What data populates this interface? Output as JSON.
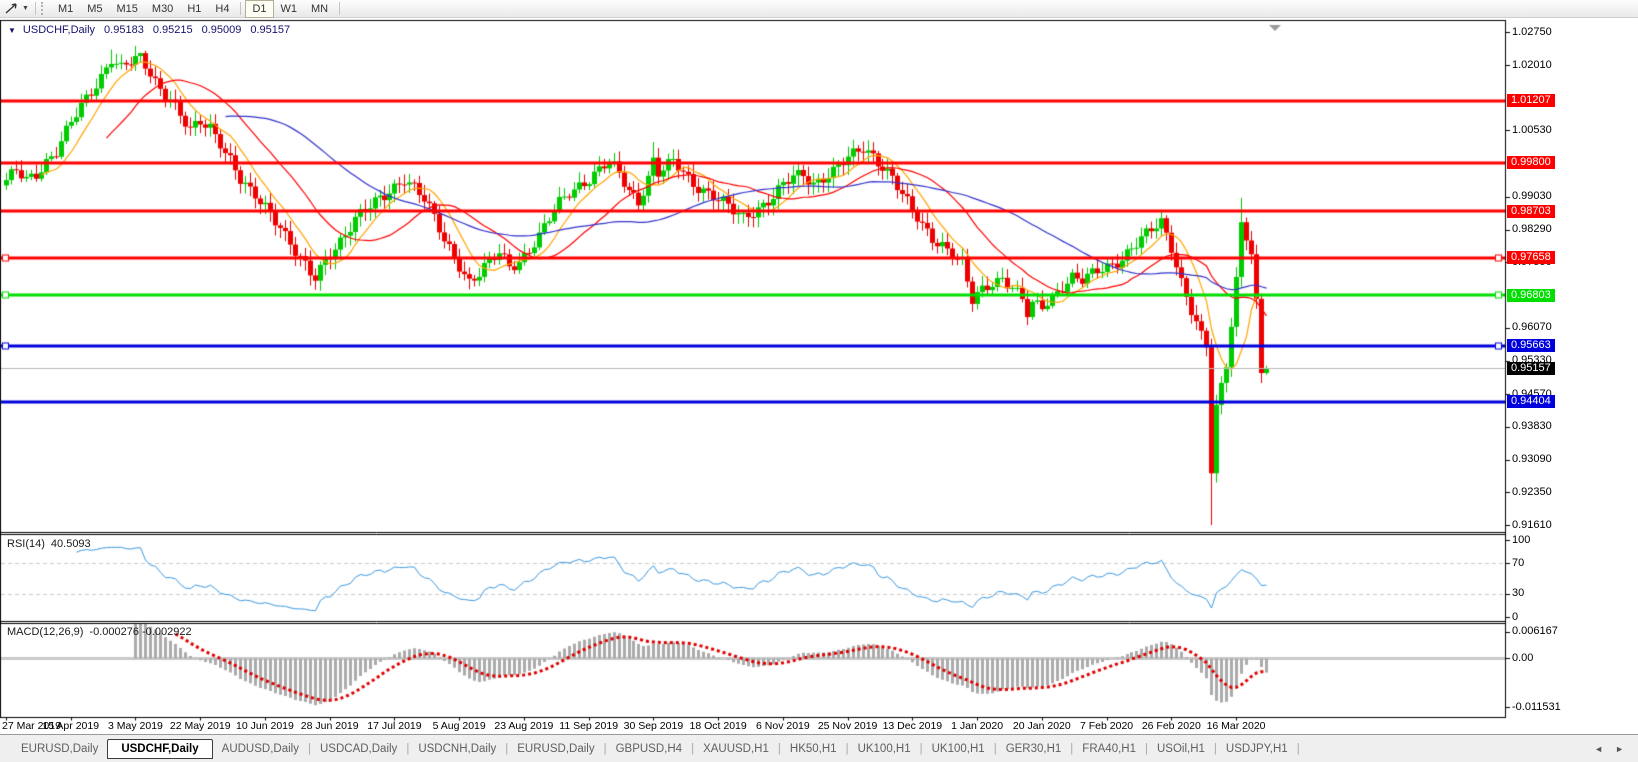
{
  "toolbar": {
    "chart_tool_icon": "cursor-arrow",
    "timeframes": [
      "M1",
      "M5",
      "M15",
      "M30",
      "H1",
      "H4",
      "D1",
      "W1",
      "MN"
    ],
    "active_timeframe": "D1"
  },
  "chart": {
    "symbol_title": "USDCHF,Daily",
    "ohlc": {
      "open": "0.95183",
      "high": "0.95215",
      "low": "0.95009",
      "close": "0.95157"
    },
    "current_price": 0.95157,
    "current_price_label_color": "#000000",
    "current_price_line_color": "#b8b8b8",
    "price_axis_ticks": [
      1.0275,
      1.0201,
      1.0053,
      0.9903,
      0.9829,
      0.9755,
      0.9607,
      0.9533,
      0.9457,
      0.9383,
      0.9309,
      0.9235,
      0.9161
    ],
    "lines": [
      {
        "value": 1.01207,
        "color": "#FF0000",
        "width": 3,
        "handles": false
      },
      {
        "value": 0.998,
        "color": "#FF0000",
        "width": 3,
        "handles": false
      },
      {
        "value": 0.98703,
        "color": "#FF0000",
        "width": 3,
        "handles": false
      },
      {
        "value": 0.97658,
        "color": "#FF0000",
        "width": 3,
        "handles": true
      },
      {
        "value": 0.96803,
        "color": "#00DE00",
        "width": 3,
        "handles": true
      },
      {
        "value": 0.95663,
        "color": "#0000DC",
        "width": 3,
        "handles": true
      },
      {
        "value": 0.94404,
        "color": "#0000DC",
        "width": 3,
        "handles": false
      }
    ]
  },
  "rsi": {
    "label": "RSI(14)",
    "value_text": "40.5093",
    "axis_ticks": [
      100,
      70,
      30,
      0
    ],
    "upper_level": 70,
    "lower_level": 30,
    "line_color": "#3C99E0",
    "level_color": "#cdcdcd"
  },
  "macd": {
    "label": "MACD(12,26,9)",
    "values_text": "-0.000276 -0.002922",
    "axis_ticks": [
      {
        "text": "0.006167",
        "value": 0.006167
      },
      {
        "text": "0.00",
        "value": 0
      },
      {
        "text": "-0.011531",
        "value": -0.011531
      }
    ],
    "histogram_color": "#ababab",
    "signal_color": "#E00000",
    "zero_color": "#c9c9c9"
  },
  "date_axis": {
    "labels": [
      "27 Mar 2019",
      "15 Apr 2019",
      "3 May 2019",
      "22 May 2019",
      "10 Jun 2019",
      "28 Jun 2019",
      "17 Jul 2019",
      "5 Aug 2019",
      "23 Aug 2019",
      "11 Sep 2019",
      "30 Sep 2019",
      "18 Oct 2019",
      "6 Nov 2019",
      "25 Nov 2019",
      "13 Dec 2019",
      "1 Jan 2020",
      "20 Jan 2020",
      "7 Feb 2020",
      "26 Feb 2020",
      "16 Mar 2020"
    ],
    "bars_per_label": 13
  },
  "tabs": [
    {
      "label": "EURUSD,Daily",
      "active": false
    },
    {
      "label": "USDCHF,Daily",
      "active": true
    },
    {
      "label": "AUDUSD,Daily",
      "active": false
    },
    {
      "label": "USDCAD,Daily",
      "active": false
    },
    {
      "label": "USDCNH,Daily",
      "active": false
    },
    {
      "label": "EURUSD,Daily",
      "active": false
    },
    {
      "label": "GBPUSD,H4",
      "active": false
    },
    {
      "label": "XAUUSD,H1",
      "active": false
    },
    {
      "label": "HK50,H1",
      "active": false
    },
    {
      "label": "UK100,H1",
      "active": false
    },
    {
      "label": "UK100,H1",
      "active": false
    },
    {
      "label": "GER30,H1",
      "active": false
    },
    {
      "label": "FRA40,H1",
      "active": false
    },
    {
      "label": "USOil,H1",
      "active": false
    },
    {
      "label": "USDJPY,H1",
      "active": false
    }
  ],
  "tab_scroll": {
    "left": "◄",
    "right": "►"
  },
  "chart_data": {
    "type": "candlestick",
    "symbol": "USDCHF",
    "timeframe": "Daily",
    "bars_total": 254,
    "up_color": "#00CC00",
    "down_color": "#EE0000",
    "y_range": {
      "top": 1.03005,
      "bottom": 0.91455
    },
    "close_anchors": [
      [
        0,
        0.9935
      ],
      [
        2,
        0.996
      ],
      [
        4,
        0.9942
      ],
      [
        6,
        0.9958
      ],
      [
        8,
        0.9985
      ],
      [
        10,
        1.0005
      ],
      [
        13,
        1.0068
      ],
      [
        16,
        1.0125
      ],
      [
        19,
        1.0178
      ],
      [
        21,
        1.0218
      ],
      [
        23,
        1.0192
      ],
      [
        25,
        1.0205
      ],
      [
        27,
        1.0215
      ],
      [
        29,
        1.0185
      ],
      [
        31,
        1.015
      ],
      [
        33,
        1.0128
      ],
      [
        35,
        1.0085
      ],
      [
        37,
        1.0048
      ],
      [
        39,
        1.007
      ],
      [
        41,
        1.0062
      ],
      [
        43,
        1.003
      ],
      [
        45,
        0.999
      ],
      [
        47,
        0.994
      ],
      [
        49,
        0.991
      ],
      [
        52,
        0.988
      ],
      [
        55,
        0.9842
      ],
      [
        57,
        0.98
      ],
      [
        59,
        0.9762
      ],
      [
        61,
        0.9725
      ],
      [
        62,
        0.9715
      ],
      [
        64,
        0.9758
      ],
      [
        66,
        0.9792
      ],
      [
        68,
        0.9822
      ],
      [
        70,
        0.9855
      ],
      [
        73,
        0.9878
      ],
      [
        76,
        0.9905
      ],
      [
        78,
        0.9928
      ],
      [
        80,
        0.9948
      ],
      [
        82,
        0.9925
      ],
      [
        84,
        0.9895
      ],
      [
        86,
        0.9852
      ],
      [
        88,
        0.9805
      ],
      [
        90,
        0.9772
      ],
      [
        92,
        0.9732
      ],
      [
        93,
        0.9712
      ],
      [
        95,
        0.9728
      ],
      [
        97,
        0.9752
      ],
      [
        99,
        0.9775
      ],
      [
        101,
        0.9748
      ],
      [
        103,
        0.976
      ],
      [
        105,
        0.9785
      ],
      [
        107,
        0.9812
      ],
      [
        109,
        0.985
      ],
      [
        111,
        0.9888
      ],
      [
        113,
        0.9915
      ],
      [
        115,
        0.9932
      ],
      [
        117,
        0.9945
      ],
      [
        119,
        0.9962
      ],
      [
        121,
        0.998
      ],
      [
        123,
        0.9952
      ],
      [
        125,
        0.992
      ],
      [
        127,
        0.9895
      ],
      [
        129,
        0.9948
      ],
      [
        130,
        0.9985
      ],
      [
        131,
        0.9955
      ],
      [
        132,
        0.9962
      ],
      [
        134,
        0.998
      ],
      [
        136,
        0.9958
      ],
      [
        138,
        0.9935
      ],
      [
        140,
        0.9922
      ],
      [
        142,
        0.9905
      ],
      [
        144,
        0.9888
      ],
      [
        146,
        0.9868
      ],
      [
        148,
        0.9855
      ],
      [
        150,
        0.9872
      ],
      [
        152,
        0.9888
      ],
      [
        154,
        0.9905
      ],
      [
        156,
        0.9928
      ],
      [
        158,
        0.9945
      ],
      [
        160,
        0.9952
      ],
      [
        162,
        0.9935
      ],
      [
        164,
        0.995
      ],
      [
        166,
        0.9962
      ],
      [
        168,
        0.998
      ],
      [
        170,
        0.9995
      ],
      [
        172,
        1.0012
      ],
      [
        174,
        0.9998
      ],
      [
        176,
        0.9975
      ],
      [
        178,
        0.9948
      ],
      [
        180,
        0.9905
      ],
      [
        182,
        0.9868
      ],
      [
        184,
        0.9838
      ],
      [
        186,
        0.9812
      ],
      [
        188,
        0.9798
      ],
      [
        190,
        0.9775
      ],
      [
        192,
        0.9748
      ],
      [
        194,
        0.9665
      ],
      [
        196,
        0.9692
      ],
      [
        198,
        0.9712
      ],
      [
        200,
        0.9722
      ],
      [
        202,
        0.97
      ],
      [
        204,
        0.9668
      ],
      [
        205,
        0.9635
      ],
      [
        206,
        0.9655
      ],
      [
        208,
        0.9655
      ],
      [
        210,
        0.9678
      ],
      [
        212,
        0.9705
      ],
      [
        214,
        0.9722
      ],
      [
        216,
        0.9712
      ],
      [
        218,
        0.9725
      ],
      [
        220,
        0.974
      ],
      [
        222,
        0.9752
      ],
      [
        224,
        0.9768
      ],
      [
        226,
        0.9788
      ],
      [
        228,
        0.9805
      ],
      [
        230,
        0.9825
      ],
      [
        232,
        0.9845
      ],
      [
        234,
        0.9792
      ],
      [
        236,
        0.9715
      ],
      [
        238,
        0.9648
      ],
      [
        240,
        0.9585
      ],
      [
        241,
        0.9562
      ],
      [
        242,
        0.928
      ],
      [
        243,
        0.942
      ],
      [
        244,
        0.9475
      ],
      [
        245,
        0.953
      ],
      [
        246,
        0.9618
      ],
      [
        247,
        0.9718
      ],
      [
        248,
        0.9852
      ],
      [
        249,
        0.982
      ],
      [
        250,
        0.9772
      ],
      [
        251,
        0.966
      ],
      [
        252,
        0.9505
      ],
      [
        253,
        0.95157
      ]
    ],
    "wick_overrides": [
      {
        "i": 21,
        "high": 1.0236
      },
      {
        "i": 27,
        "high": 1.0229
      },
      {
        "i": 62,
        "low": 0.9693
      },
      {
        "i": 93,
        "low": 0.9694
      },
      {
        "i": 130,
        "high": 1.0027
      },
      {
        "i": 148,
        "low": 0.9843
      },
      {
        "i": 172,
        "high": 1.0028
      },
      {
        "i": 194,
        "low": 0.9643
      },
      {
        "i": 205,
        "low": 0.9613
      },
      {
        "i": 242,
        "low": 0.9161
      },
      {
        "i": 248,
        "high": 0.9901
      },
      {
        "i": 253,
        "high": 0.95215,
        "low": 0.95009
      }
    ],
    "moving_averages": [
      {
        "period": 8,
        "color": "#FFA500"
      },
      {
        "period": 21,
        "color": "#FF0000"
      },
      {
        "period": 45,
        "color": "#3333CC"
      }
    ]
  }
}
